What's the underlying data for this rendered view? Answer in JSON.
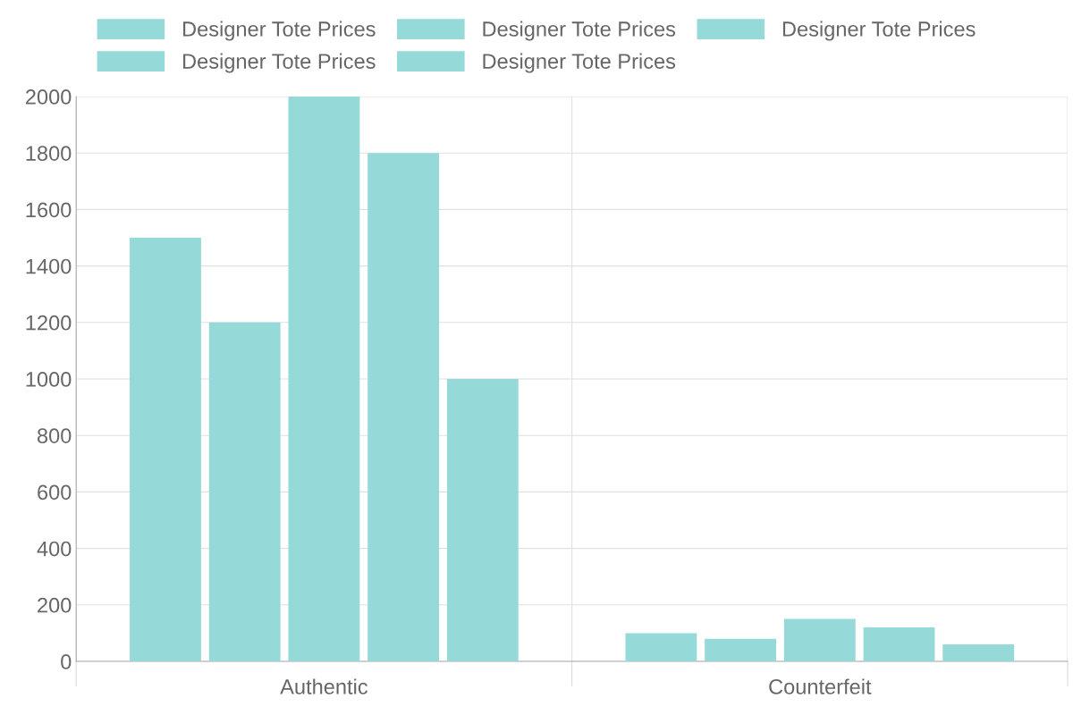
{
  "chart_data": {
    "type": "bar",
    "categories": [
      "Authentic",
      "Counterfeit"
    ],
    "series": [
      {
        "name": "Designer Tote Prices",
        "color": "#95d9d8",
        "values": [
          1500,
          100
        ]
      },
      {
        "name": "Designer Tote Prices",
        "color": "#95d9d8",
        "values": [
          1200,
          80
        ]
      },
      {
        "name": "Designer Tote Prices",
        "color": "#95d9d8",
        "values": [
          2000,
          150
        ]
      },
      {
        "name": "Designer Tote Prices",
        "color": "#95d9d8",
        "values": [
          1800,
          120
        ]
      },
      {
        "name": "Designer Tote Prices",
        "color": "#95d9d8",
        "values": [
          1000,
          60
        ]
      }
    ],
    "ylim": [
      0,
      2000
    ],
    "yticks": [
      0,
      200,
      400,
      600,
      800,
      1000,
      1200,
      1400,
      1600,
      1800,
      2000
    ],
    "grid": true,
    "legend": "top"
  }
}
